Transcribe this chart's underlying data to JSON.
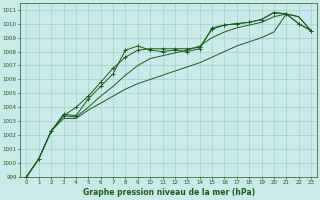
{
  "title": "Graphe pression niveau de la mer (hPa)",
  "background_color": "#caeaea",
  "grid_color": "#a8cccc",
  "line_color": "#1a5c1a",
  "ylim": [
    999,
    1011.5
  ],
  "yticks": [
    999,
    1000,
    1001,
    1002,
    1003,
    1004,
    1005,
    1006,
    1007,
    1008,
    1009,
    1010,
    1011
  ],
  "x_labels": [
    "0",
    "1",
    "2",
    "3",
    "4",
    "5",
    "6",
    "7",
    "8",
    "9",
    "10",
    "11",
    "12",
    "13",
    "14",
    "15",
    "16",
    "17",
    "18",
    "19",
    "20",
    "21",
    "22",
    "23"
  ],
  "line_marked1": [
    999.0,
    1000.3,
    1002.3,
    1003.5,
    1003.4,
    1004.6,
    1005.5,
    1006.4,
    1008.1,
    1008.4,
    1008.1,
    1008.0,
    1008.1,
    1008.0,
    1008.2,
    1009.7,
    1009.9,
    1010.0,
    1010.1,
    1010.3,
    1010.8,
    1010.7,
    1010.0,
    1009.5
  ],
  "line_marked2": [
    999.0,
    1000.3,
    1002.3,
    1003.4,
    1004.0,
    1004.8,
    1005.8,
    1006.8,
    1007.6,
    1008.1,
    1008.2,
    1008.2,
    1008.2,
    1008.2,
    1008.3,
    1009.6,
    1009.9,
    1010.0,
    1010.1,
    1010.3,
    1010.8,
    1010.7,
    1010.0,
    1009.5
  ],
  "line_plain1": [
    999.0,
    1000.3,
    1002.3,
    1003.4,
    1003.3,
    1004.0,
    1004.8,
    1005.5,
    1006.3,
    1007.0,
    1007.5,
    1007.7,
    1007.9,
    1008.1,
    1008.4,
    1009.0,
    1009.4,
    1009.7,
    1009.9,
    1010.1,
    1010.5,
    1010.7,
    1010.5,
    1009.5
  ],
  "line_plain2": [
    999.0,
    1000.3,
    1002.3,
    1003.2,
    1003.2,
    1003.8,
    1004.3,
    1004.8,
    1005.3,
    1005.7,
    1006.0,
    1006.3,
    1006.6,
    1006.9,
    1007.2,
    1007.6,
    1008.0,
    1008.4,
    1008.7,
    1009.0,
    1009.4,
    1010.7,
    1010.5,
    1009.5
  ]
}
